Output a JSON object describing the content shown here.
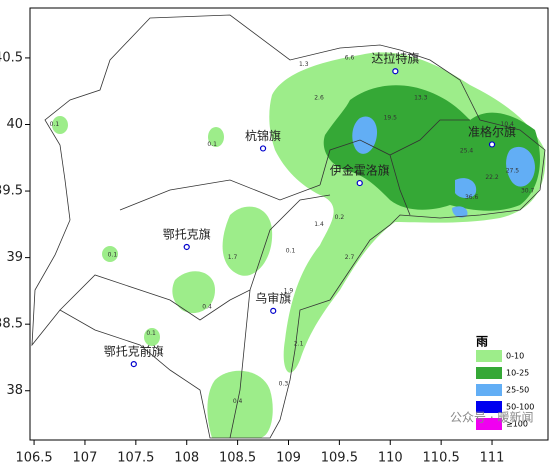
{
  "map": {
    "xlim": [
      106.46,
      111.55
    ],
    "ylim": [
      37.63,
      40.875
    ],
    "xticks": [
      106.5,
      107,
      107.5,
      108,
      108.5,
      109,
      109.5,
      110,
      110.5,
      111
    ],
    "yticks": [
      {
        "value": 40.5,
        "label": "40.5"
      },
      40,
      {
        "value": 39.5,
        "label": "39.5"
      },
      39,
      {
        "value": 38.5,
        "label": "38.5"
      },
      38
    ],
    "cities": [
      {
        "name": "达拉特旗",
        "lon": 110.05,
        "lat": 40.4
      },
      {
        "name": "杭锦旗",
        "lon": 108.75,
        "lat": 39.82
      },
      {
        "name": "伊金霍洛旗",
        "lon": 109.7,
        "lat": 39.56
      },
      {
        "name": "准格尔旗",
        "lon": 111.0,
        "lat": 39.85
      },
      {
        "name": "鄂托克旗",
        "lon": 108.0,
        "lat": 39.08
      },
      {
        "name": "乌审旗",
        "lon": 108.85,
        "lat": 38.6
      },
      {
        "name": "鄂托克前旗",
        "lon": 107.48,
        "lat": 38.2
      }
    ],
    "stations": [
      {
        "lon": 106.7,
        "lat": 40.0,
        "value": 0.1
      },
      {
        "lon": 108.25,
        "lat": 39.85,
        "value": 0.1
      },
      {
        "lon": 107.27,
        "lat": 39.02,
        "value": 0.1
      },
      {
        "lon": 107.65,
        "lat": 38.43,
        "value": 0.1
      },
      {
        "lon": 108.2,
        "lat": 38.63,
        "value": 0.4
      },
      {
        "lon": 108.45,
        "lat": 39.0,
        "value": 1.7
      },
      {
        "lon": 109.02,
        "lat": 39.05,
        "value": 0.1
      },
      {
        "lon": 109.0,
        "lat": 38.75,
        "value": 1.9
      },
      {
        "lon": 109.1,
        "lat": 38.35,
        "value": 2.1
      },
      {
        "lon": 108.95,
        "lat": 38.05,
        "value": 0.3
      },
      {
        "lon": 108.5,
        "lat": 37.92,
        "value": 0.4
      },
      {
        "lon": 109.3,
        "lat": 39.25,
        "value": 1.4
      },
      {
        "lon": 109.5,
        "lat": 39.3,
        "value": 0.2
      },
      {
        "lon": 109.6,
        "lat": 39.0,
        "value": 2.7
      },
      {
        "lon": 109.15,
        "lat": 40.45,
        "value": 1.3
      },
      {
        "lon": 109.3,
        "lat": 40.2,
        "value": 2.6
      },
      {
        "lon": 109.6,
        "lat": 40.5,
        "value": 6.6
      },
      {
        "lon": 110.0,
        "lat": 40.05,
        "value": 19.5
      },
      {
        "lon": 110.3,
        "lat": 40.2,
        "value": 13.3
      },
      {
        "lon": 110.75,
        "lat": 39.8,
        "value": 25.4
      },
      {
        "lon": 111.0,
        "lat": 39.6,
        "value": 22.2
      },
      {
        "lon": 110.8,
        "lat": 39.45,
        "value": 36.6
      },
      {
        "lon": 111.2,
        "lat": 39.65,
        "value": 27.5
      },
      {
        "lon": 111.35,
        "lat": 39.5,
        "value": 30.7
      },
      {
        "lon": 111.15,
        "lat": 40.0,
        "value": 10.4
      }
    ],
    "legend": {
      "title": "雨",
      "items": [
        {
          "label": "0-10",
          "color": "#9ded8a"
        },
        {
          "label": "10-25",
          "color": "#35a836"
        },
        {
          "label": "25-50",
          "color": "#62aef5"
        },
        {
          "label": "50-100",
          "color": "#0000f0"
        },
        {
          "label": "≥100",
          "color": "#f000f0"
        }
      ]
    },
    "watermark": "公众号 · 暖新闻"
  }
}
